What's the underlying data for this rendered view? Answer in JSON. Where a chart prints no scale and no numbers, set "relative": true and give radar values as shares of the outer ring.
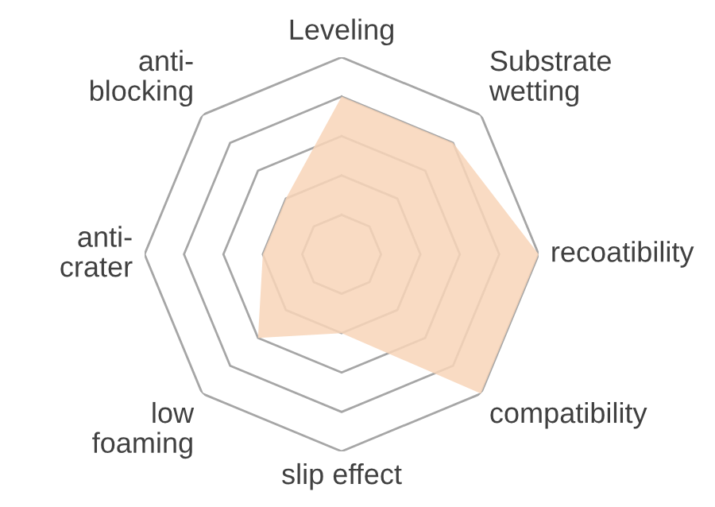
{
  "chart_data": {
    "type": "radar",
    "relative": true,
    "categories": [
      "Leveling",
      "Substrate\nwetting",
      "recoatibility",
      "compatibility",
      "slip effect",
      "low\nfoaming",
      "anti-\ncrater",
      "anti-\nblocking"
    ],
    "series": [
      {
        "color": "#f8d5b8",
        "values": [
          0.8,
          0.8,
          1.0,
          1.0,
          0.4,
          0.6,
          0.4,
          0.4
        ]
      }
    ],
    "grid": true,
    "legend": false
  }
}
